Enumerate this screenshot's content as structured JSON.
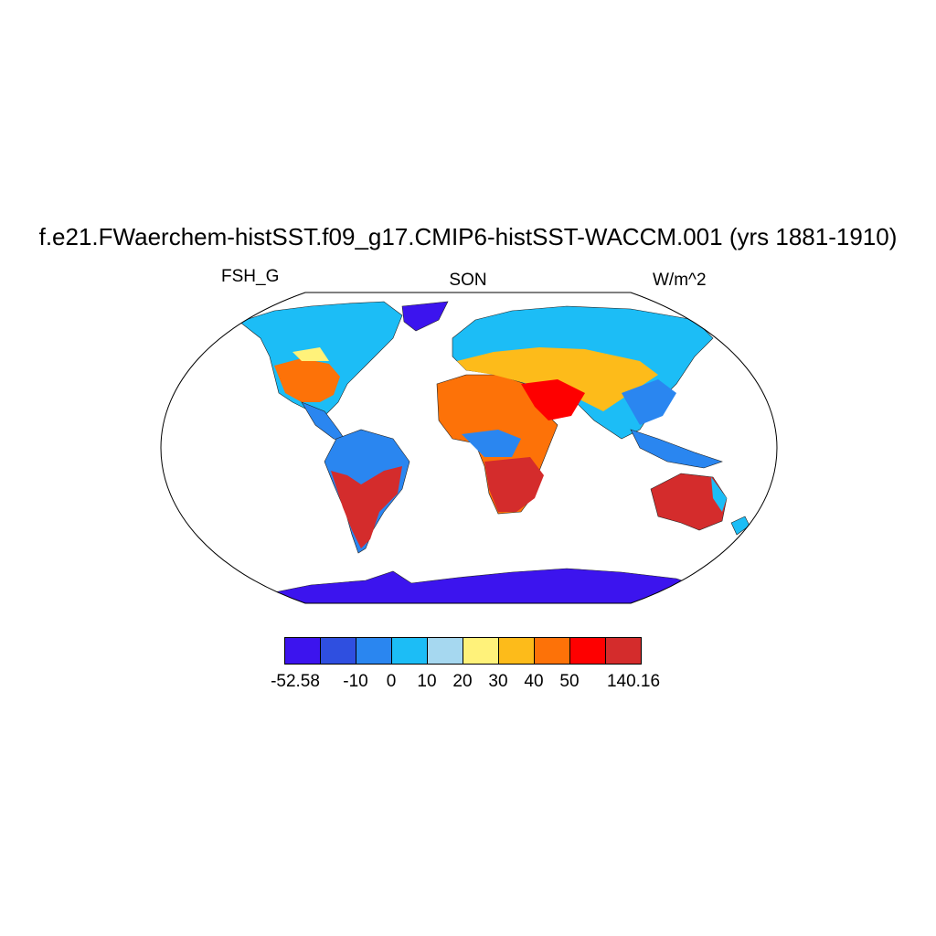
{
  "title": "f.e21.FWaerchem-histSST.f09_g17.CMIP6-histSST-WACCM.001 (yrs 1881-1910)",
  "left_label": "FSH_G",
  "center_label": "SON",
  "right_label": "W/m^2",
  "colorbar": {
    "colors": [
      "#3c14ee",
      "#2f4fe0",
      "#2a86f0",
      "#1cbdf6",
      "#a6d8f0",
      "#fff27a",
      "#fdbb1a",
      "#fd7208",
      "#fe0000",
      "#d42c2c"
    ],
    "labels": [
      "-52.58",
      "-10",
      "0",
      "10",
      "20",
      "30",
      "40",
      "50",
      "140.16"
    ]
  }
}
